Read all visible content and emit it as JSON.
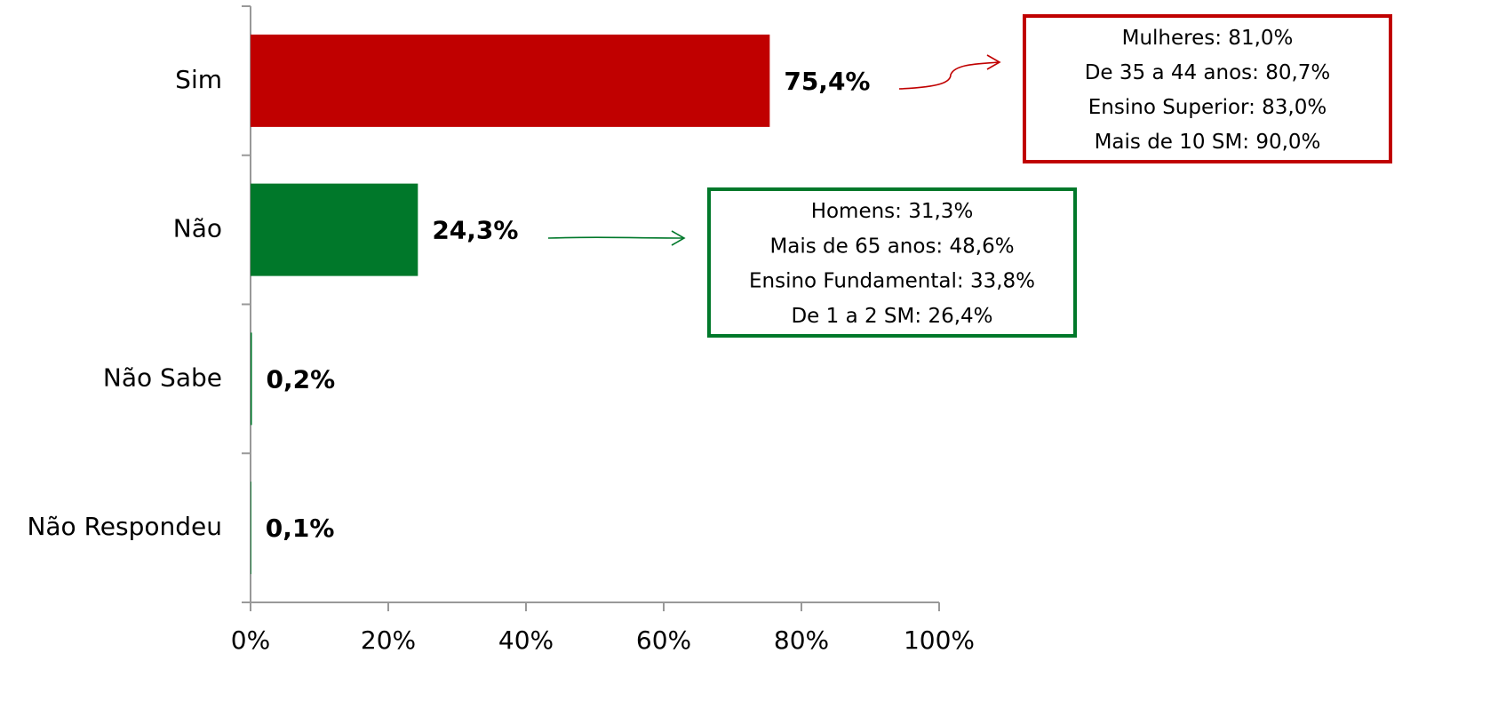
{
  "chart_data": {
    "type": "barh",
    "categories": [
      "Sim",
      "Não",
      "Não Sabe",
      "Não Respondeu"
    ],
    "values": [
      75.4,
      24.3,
      0.2,
      0.1
    ],
    "value_labels": [
      "75,4%",
      "24,3%",
      "0,2%",
      "0,1%"
    ],
    "colors": [
      "#c00000",
      "#00782a",
      "#00782a",
      "#00782a"
    ],
    "xlim": [
      0,
      100
    ],
    "xticks": [
      {
        "value": 0,
        "label": "0%"
      },
      {
        "value": 20,
        "label": "20%"
      },
      {
        "value": 40,
        "label": "40%"
      },
      {
        "value": 60,
        "label": "60%"
      },
      {
        "value": 80,
        "label": "80%"
      },
      {
        "value": 100,
        "label": "100%"
      }
    ],
    "annotations": [
      {
        "color": "#c00000",
        "lines": [
          "Mulheres: 81,0%",
          "De 35 a 44 anos: 80,7%",
          "Ensino Superior: 83,0%",
          "Mais de 10 SM: 90,0%"
        ]
      },
      {
        "color": "#00782a",
        "lines": [
          "Homens: 31,3%",
          "Mais de 65 anos: 48,6%",
          "Ensino Fundamental: 33,8%",
          "De 1 a 2 SM: 26,4%"
        ]
      }
    ]
  }
}
